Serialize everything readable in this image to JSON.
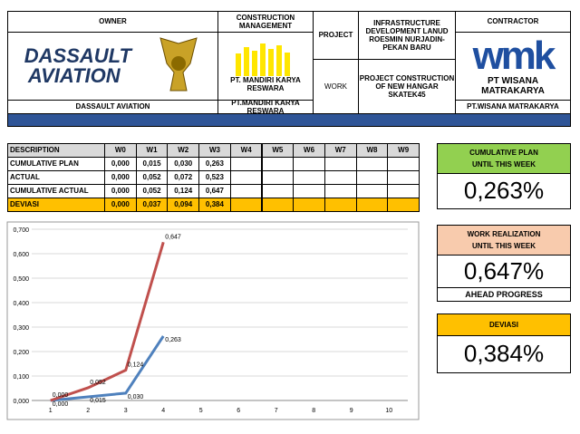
{
  "header": {
    "owner": {
      "label": "OWNER",
      "logo": "DASSAULT AVIATION",
      "name": "DASSAULT AVIATION"
    },
    "construction_management": {
      "label": "CONSTRUCTION MANAGEMENT",
      "logo_caption": "PT. MANDIRI KARYA RESWARA",
      "name": "PT.MANDIRI KARYA RESWARA"
    },
    "project": {
      "label": "PROJECT",
      "value": "INFRASTRUCTURE DEVELOPMENT LANUD ROESMIN NURJADIN-PEKAN BARU"
    },
    "work": {
      "label": "WORK",
      "value": "PROJECT CONSTRUCTION OF NEW HANGAR SKATEK45"
    },
    "contractor": {
      "label": "CONTRACTOR",
      "logo": "wmk",
      "logo_caption": "PT WISANA MATRAKARYA",
      "name": "PT.WISANA MATRAKARYA"
    }
  },
  "table": {
    "columns": [
      "DESCRIPTION",
      "W0",
      "W1",
      "W2",
      "W3",
      "W4",
      "W5",
      "W6",
      "W7",
      "W8",
      "W9"
    ],
    "rows": [
      [
        "CUMULATIVE PLAN",
        "0,000",
        "0,015",
        "0,030",
        "0,263"
      ],
      [
        "ACTUAL",
        "0,000",
        "0,052",
        "0,072",
        "0,523"
      ],
      [
        "CUMULATIVE ACTUAL",
        "0,000",
        "0,052",
        "0,124",
        "0,647"
      ],
      [
        "DEVIASI",
        "0,000",
        "0,037",
        "0,094",
        "0,384"
      ]
    ]
  },
  "cards": [
    {
      "title": [
        "CUMULATIVE PLAN",
        "UNTIL THIS WEEK"
      ],
      "value": "0,263%"
    },
    {
      "title": [
        "WORK REALIZATION",
        "UNTIL THIS WEEK"
      ],
      "value": "0,647%",
      "note": "AHEAD PROGRESS"
    },
    {
      "title": [
        "DEVIASI"
      ],
      "value": "0,384%"
    }
  ],
  "chart_data": {
    "type": "line",
    "categories": [
      1,
      2,
      3,
      4,
      5,
      6,
      7,
      8,
      9,
      10
    ],
    "series": [
      {
        "color": "#4f81bd",
        "values": [
          0,
          0.015,
          0.03,
          0.263,
          null,
          null,
          null,
          null,
          null,
          null
        ],
        "value_labels": [
          "0,000",
          "0,015",
          "0,030",
          "0,263",
          null,
          null,
          null,
          null,
          null,
          null
        ]
      },
      {
        "color": "#c0504d",
        "values": [
          0,
          0.052,
          0.124,
          0.647,
          null,
          null,
          null,
          null,
          null,
          null
        ],
        "value_labels": [
          "0,000",
          "0,052",
          "0,124",
          "0,647",
          null,
          null,
          null,
          null,
          null,
          null
        ]
      }
    ],
    "ylim": [
      0,
      0.7
    ],
    "yticks": [
      {
        "value": 0,
        "label": "0,000"
      },
      {
        "value": 0.1,
        "label": "0,100"
      },
      {
        "value": 0.2,
        "label": "0,200"
      },
      {
        "value": 0.3,
        "label": "0,300"
      },
      {
        "value": 0.4,
        "label": "0,400"
      },
      {
        "value": 0.5,
        "label": "0,500"
      },
      {
        "value": 0.6,
        "label": "0,600"
      },
      {
        "value": 0.7,
        "label": "0,700"
      }
    ],
    "grid": true
  }
}
